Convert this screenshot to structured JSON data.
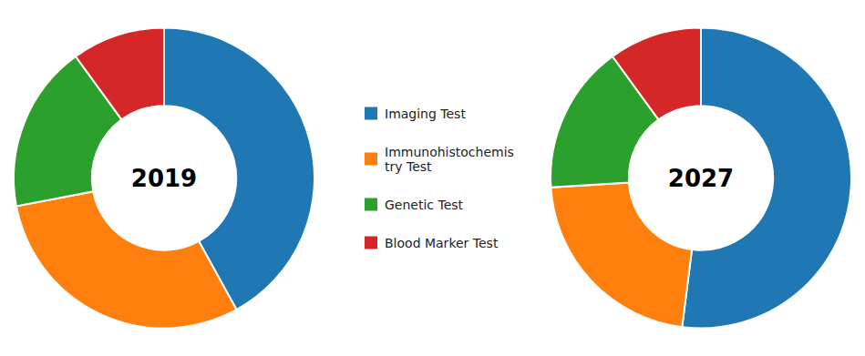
{
  "chart_data": [
    {
      "type": "pie",
      "title": "2019",
      "categories": [
        "Imaging Test",
        "Immunohistochemis\ntry Test",
        "Genetic Test",
        "Blood Marker Test"
      ],
      "values": [
        42,
        30,
        18,
        10
      ],
      "legend": "right"
    },
    {
      "type": "pie",
      "title": "2027",
      "categories": [
        "Imaging Test",
        "Immunohistochemis\ntry Test",
        "Genetic Test",
        "Blood Marker Test"
      ],
      "values": [
        52,
        22,
        16,
        10
      ]
    }
  ]
}
